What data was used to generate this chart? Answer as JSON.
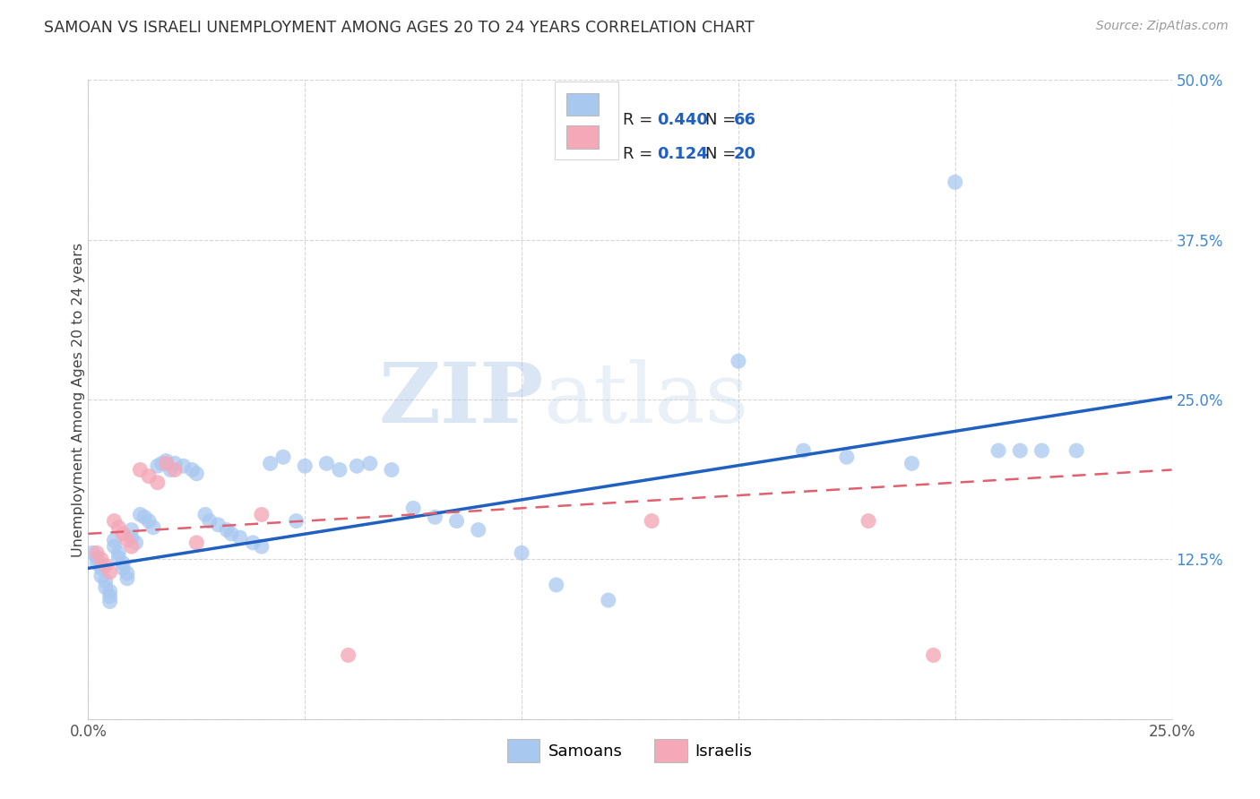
{
  "title": "SAMOAN VS ISRAELI UNEMPLOYMENT AMONG AGES 20 TO 24 YEARS CORRELATION CHART",
  "source": "Source: ZipAtlas.com",
  "ylabel": "Unemployment Among Ages 20 to 24 years",
  "xlim": [
    0.0,
    0.25
  ],
  "ylim": [
    0.0,
    0.5
  ],
  "xticks": [
    0.0,
    0.05,
    0.1,
    0.15,
    0.2,
    0.25
  ],
  "yticks": [
    0.0,
    0.125,
    0.25,
    0.375,
    0.5
  ],
  "watermark_zip": "ZIP",
  "watermark_atlas": "atlas",
  "samoan_color": "#A8C8F0",
  "israeli_color": "#F4A8B8",
  "trend_blue": "#2060C0",
  "trend_pink": "#E06070",
  "legend_r_color": "#2060C0",
  "samoan_x": [
    0.001,
    0.002,
    0.002,
    0.003,
    0.003,
    0.004,
    0.004,
    0.005,
    0.005,
    0.005,
    0.006,
    0.006,
    0.007,
    0.007,
    0.008,
    0.008,
    0.009,
    0.009,
    0.01,
    0.01,
    0.011,
    0.012,
    0.013,
    0.014,
    0.015,
    0.016,
    0.017,
    0.018,
    0.019,
    0.02,
    0.022,
    0.024,
    0.025,
    0.027,
    0.028,
    0.03,
    0.032,
    0.033,
    0.035,
    0.038,
    0.04,
    0.042,
    0.045,
    0.048,
    0.05,
    0.055,
    0.058,
    0.062,
    0.065,
    0.07,
    0.075,
    0.08,
    0.085,
    0.09,
    0.1,
    0.108,
    0.12,
    0.15,
    0.165,
    0.175,
    0.19,
    0.2,
    0.21,
    0.215,
    0.22,
    0.228
  ],
  "samoan_y": [
    0.13,
    0.126,
    0.122,
    0.118,
    0.112,
    0.108,
    0.103,
    0.1,
    0.096,
    0.092,
    0.14,
    0.135,
    0.13,
    0.126,
    0.122,
    0.118,
    0.114,
    0.11,
    0.148,
    0.142,
    0.138,
    0.16,
    0.158,
    0.155,
    0.15,
    0.198,
    0.2,
    0.202,
    0.195,
    0.2,
    0.198,
    0.195,
    0.192,
    0.16,
    0.155,
    0.152,
    0.148,
    0.145,
    0.142,
    0.138,
    0.135,
    0.2,
    0.205,
    0.155,
    0.198,
    0.2,
    0.195,
    0.198,
    0.2,
    0.195,
    0.165,
    0.158,
    0.155,
    0.148,
    0.13,
    0.105,
    0.093,
    0.28,
    0.21,
    0.205,
    0.2,
    0.42,
    0.21,
    0.21,
    0.21,
    0.21
  ],
  "israeli_x": [
    0.002,
    0.003,
    0.004,
    0.005,
    0.006,
    0.007,
    0.008,
    0.009,
    0.01,
    0.012,
    0.014,
    0.016,
    0.018,
    0.02,
    0.025,
    0.04,
    0.06,
    0.13,
    0.18,
    0.195
  ],
  "israeli_y": [
    0.13,
    0.125,
    0.12,
    0.115,
    0.155,
    0.15,
    0.145,
    0.14,
    0.135,
    0.195,
    0.19,
    0.185,
    0.2,
    0.195,
    0.138,
    0.16,
    0.05,
    0.155,
    0.155,
    0.05
  ],
  "trend_samoan_x0": 0.0,
  "trend_samoan_y0": 0.118,
  "trend_samoan_x1": 0.25,
  "trend_samoan_y1": 0.252,
  "trend_israeli_x0": 0.0,
  "trend_israeli_y0": 0.145,
  "trend_israeli_x1": 0.25,
  "trend_israeli_y1": 0.195
}
